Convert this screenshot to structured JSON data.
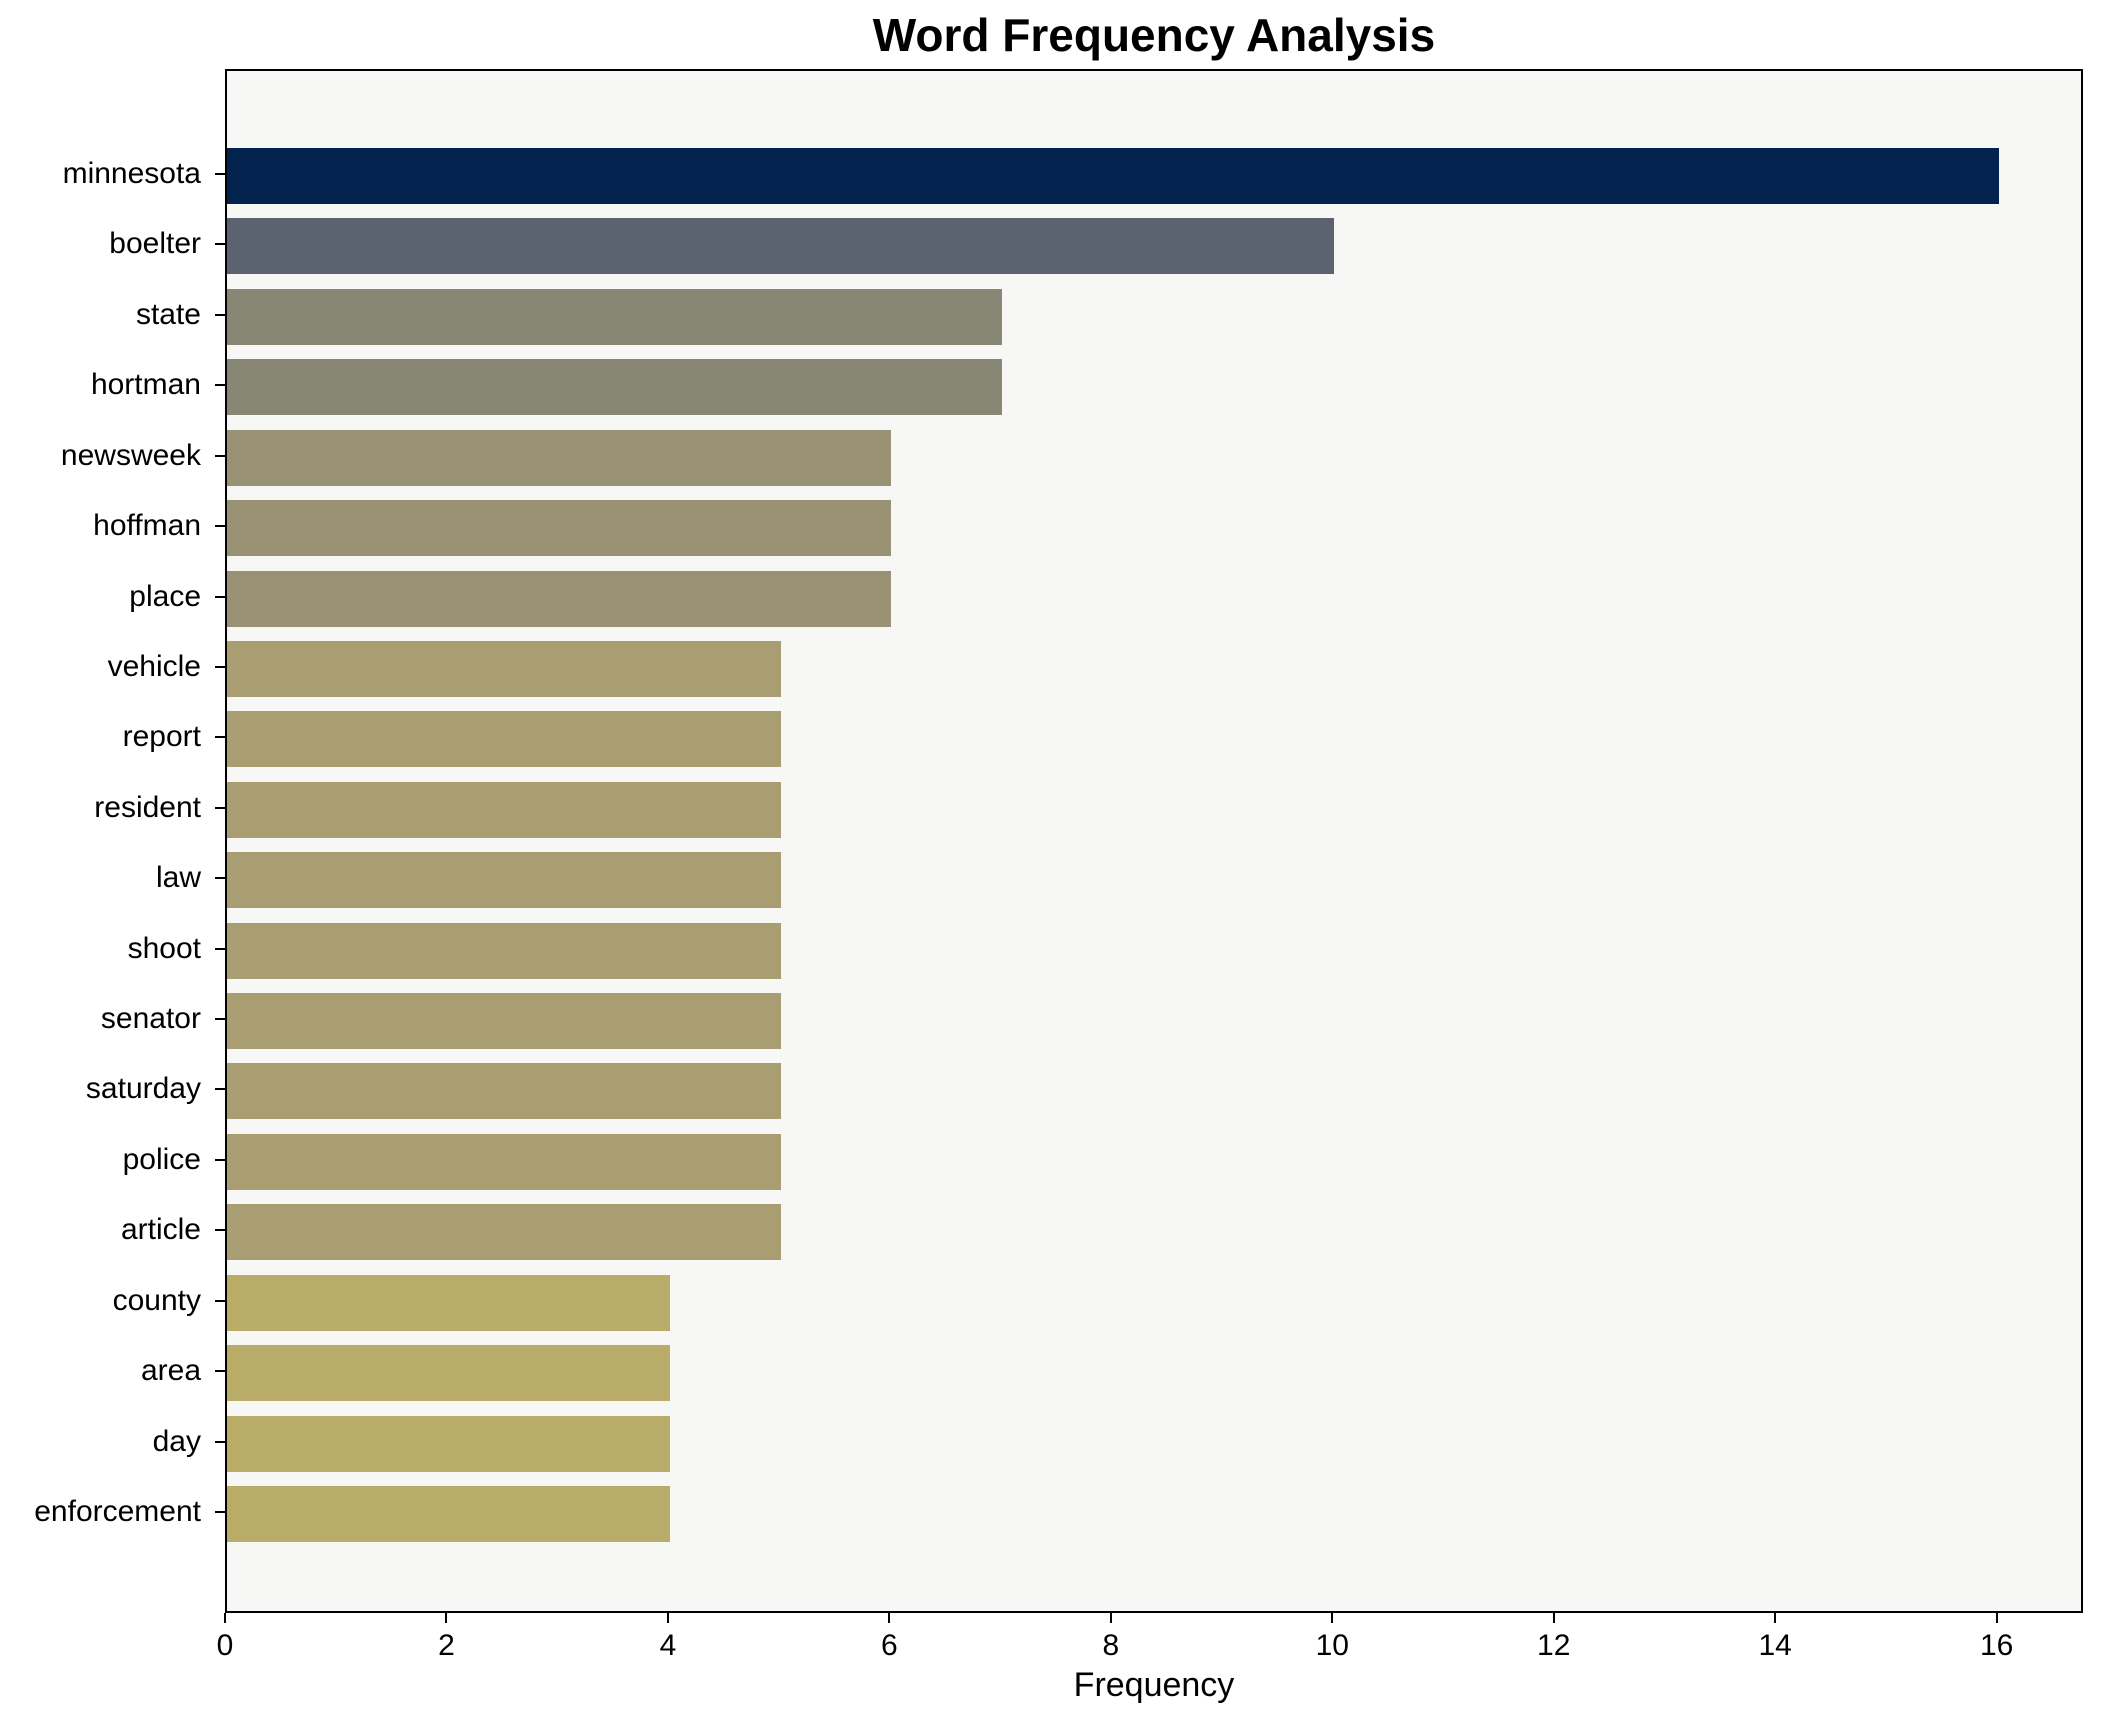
{
  "chart_data": {
    "type": "bar",
    "orientation": "horizontal",
    "title": "Word Frequency Analysis",
    "xlabel": "Frequency",
    "ylabel": "",
    "categories": [
      "minnesota",
      "boelter",
      "state",
      "hortman",
      "newsweek",
      "hoffman",
      "place",
      "vehicle",
      "report",
      "resident",
      "law",
      "shoot",
      "senator",
      "saturday",
      "police",
      "article",
      "county",
      "area",
      "day",
      "enforcement"
    ],
    "values": [
      16,
      10,
      7,
      7,
      6,
      6,
      6,
      5,
      5,
      5,
      5,
      5,
      5,
      5,
      5,
      5,
      4,
      4,
      4,
      4
    ],
    "bar_colors": [
      "#03234e",
      "#5c6370",
      "#888775",
      "#888775",
      "#989174",
      "#989174",
      "#989174",
      "#a89e72",
      "#a89e72",
      "#a89e72",
      "#a89e72",
      "#a89e72",
      "#a89e72",
      "#a89e72",
      "#a89e72",
      "#a89e72",
      "#b9ac69",
      "#b9ac69",
      "#b9ac69",
      "#b9ac69"
    ],
    "colormap_note": "cividis-like: dark navy for highest value to khaki-yellow for lowest",
    "x_ticks": [
      0,
      2,
      4,
      6,
      8,
      10,
      12,
      14,
      16
    ],
    "xlim": [
      0,
      16.78
    ],
    "grid": false,
    "legend": "none",
    "plot_background": "#f7f7f5",
    "figure_background": "#ffffff",
    "axis_color": "#000000"
  }
}
